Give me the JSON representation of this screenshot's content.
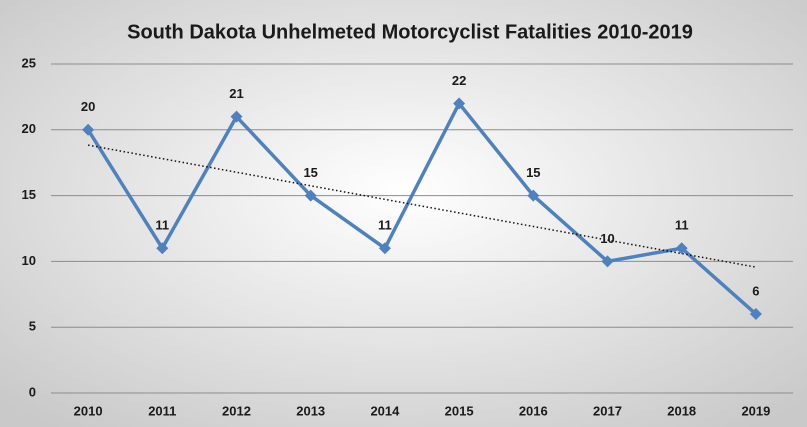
{
  "chart_data": {
    "type": "line",
    "title": "South Dakota Unhelmeted Motorcyclist Fatalities 2010-2019",
    "categories": [
      "2010",
      "2011",
      "2012",
      "2013",
      "2014",
      "2015",
      "2016",
      "2017",
      "2018",
      "2019"
    ],
    "series": [
      {
        "name": "Fatalities",
        "color": "#4f81bd",
        "values": [
          20,
          11,
          21,
          15,
          11,
          22,
          15,
          10,
          11,
          6
        ]
      }
    ],
    "ylim": [
      0,
      25
    ],
    "yticks": [
      0,
      5,
      10,
      15,
      20,
      25
    ],
    "grid": true,
    "trendline": "linear",
    "data_labels": true
  }
}
